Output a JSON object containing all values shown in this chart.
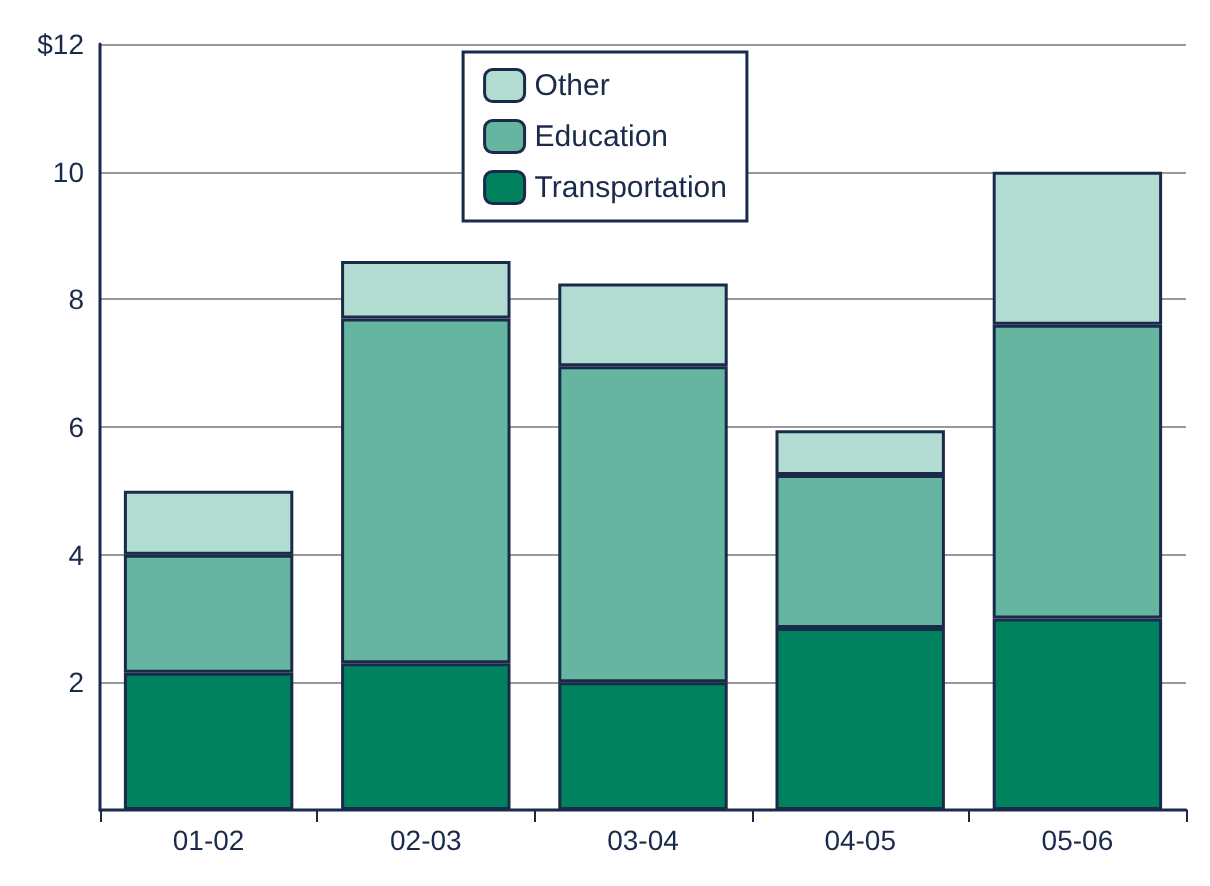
{
  "chart_data": {
    "type": "bar",
    "stacked": true,
    "categories": [
      "01-02",
      "02-03",
      "03-04",
      "04-05",
      "05-06"
    ],
    "series": [
      {
        "name": "Transportation",
        "color": "#00825f",
        "values": [
          2.15,
          2.3,
          2.0,
          2.85,
          3.0
        ]
      },
      {
        "name": "Education",
        "color": "#66b5a0",
        "values": [
          1.85,
          5.4,
          4.95,
          2.4,
          4.6
        ]
      },
      {
        "name": "Other",
        "color": "#b2dcd2",
        "values": [
          1.0,
          0.9,
          1.3,
          0.7,
          2.4
        ]
      }
    ],
    "ylim": [
      0,
      12
    ],
    "yticks": [
      2,
      4,
      6,
      8,
      10,
      {
        "value": 12,
        "label": "$12"
      }
    ],
    "grid": "y",
    "legend": "top"
  }
}
